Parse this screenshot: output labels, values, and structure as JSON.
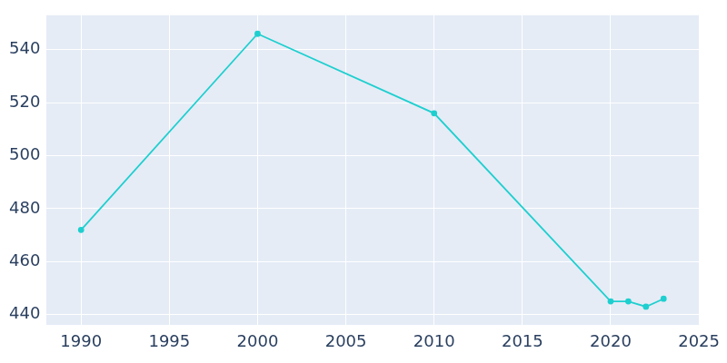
{
  "chart_data": {
    "type": "line",
    "x": [
      1990,
      2000,
      2010,
      2020,
      2021,
      2022,
      2023
    ],
    "values": [
      472,
      546,
      516,
      445,
      445,
      443,
      446
    ],
    "color": "#1fcfcf",
    "marker": "circle",
    "xlim": [
      1988,
      2025
    ],
    "xticks": [
      1990,
      1995,
      2000,
      2005,
      2010,
      2015,
      2020,
      2025
    ],
    "ylim": [
      436,
      553
    ],
    "yticks": [
      440,
      460,
      480,
      500,
      520,
      540
    ],
    "grid": true
  }
}
